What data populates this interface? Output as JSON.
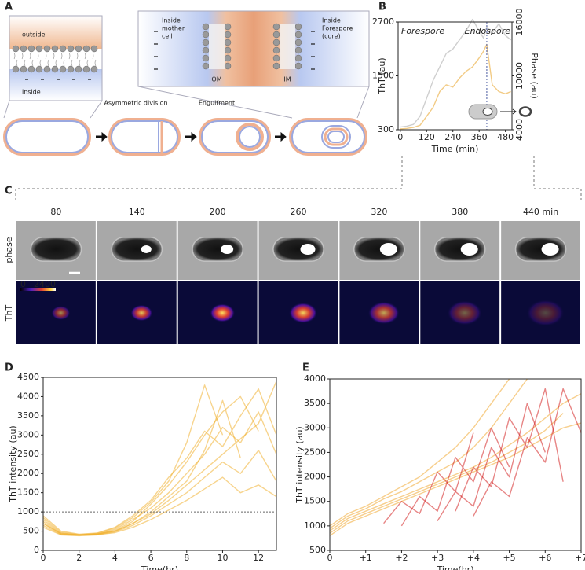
{
  "panel_labels": [
    "A",
    "B",
    "C",
    "D",
    "E"
  ],
  "diagram": {
    "outside": "outside",
    "inside": "inside",
    "mother_cell_label": [
      "Inside",
      "mother",
      "cell"
    ],
    "forespore_label": [
      "Inside",
      "Forespore",
      "(core)"
    ],
    "om": "OM",
    "im": "IM",
    "step_division": "Asymmetric division",
    "step_engulfment": "Engulfment"
  },
  "microscopy": {
    "times": [
      "80",
      "140",
      "200",
      "260",
      "320",
      "380",
      "440 min"
    ],
    "rows": [
      "phase",
      "ThT"
    ],
    "colorbar_labels": [
      "0",
      "2400"
    ]
  },
  "chart_data": [
    {
      "type": "line",
      "xlabel": "Time (min)",
      "ylabel": "ThT (au)",
      "y2label": "Phase (au)",
      "annotations": [
        "Forespore",
        "Endospore"
      ],
      "x": [
        0,
        30,
        60,
        90,
        120,
        150,
        180,
        210,
        240,
        270,
        300,
        330,
        360,
        380,
        395,
        420,
        450,
        480,
        505
      ],
      "xlim": [
        -10,
        510
      ],
      "xticks": [
        0,
        120,
        240,
        360,
        480
      ],
      "ylim": [
        300,
        2700
      ],
      "yticks": [
        300,
        1500,
        2700
      ],
      "y2lim": [
        4000,
        16000
      ],
      "y2ticks": [
        4000,
        10000,
        16000
      ],
      "vline": 395,
      "series": [
        {
          "name": "ThT",
          "color": "#e8a020",
          "axis": "y",
          "values": [
            320,
            330,
            350,
            400,
            600,
            800,
            1150,
            1300,
            1250,
            1450,
            1600,
            1700,
            1900,
            2050,
            2200,
            1300,
            1150,
            1100,
            1150
          ]
        },
        {
          "name": "Phase",
          "color": "#a8a8a8",
          "axis": "y2",
          "values": [
            4300,
            4400,
            4600,
            5500,
            7500,
            9500,
            11000,
            12500,
            13000,
            14000,
            15000,
            16300,
            15000,
            14200,
            15500,
            14800,
            15800,
            14500,
            14000
          ]
        }
      ]
    },
    {
      "type": "line",
      "xlabel": "Time(hr)",
      "ylabel": "ThT intensity (au)",
      "x": [
        0,
        1,
        2,
        3,
        4,
        5,
        6,
        7,
        8,
        9,
        10,
        11,
        12,
        13
      ],
      "xlim": [
        0,
        13
      ],
      "xticks": [
        0,
        2,
        4,
        6,
        8,
        10,
        12
      ],
      "ylim": [
        0,
        4500
      ],
      "yticks": [
        0,
        500,
        1000,
        1500,
        2000,
        2500,
        3000,
        3500,
        4000,
        4500
      ],
      "hline": 1000,
      "series": [
        {
          "color": "#f0b030",
          "values": [
            800,
            450,
            400,
            420,
            550,
            800,
            1100,
            1500,
            2000,
            2500,
            3200,
            2800,
            3600,
            2500
          ]
        },
        {
          "color": "#f0b030",
          "values": [
            700,
            420,
            400,
            430,
            500,
            700,
            1000,
            1400,
            1800,
            2600,
            3900,
            2400,
            null,
            null
          ]
        },
        {
          "color": "#f0b030",
          "values": [
            900,
            500,
            420,
            450,
            600,
            900,
            1300,
            1900,
            2400,
            3100,
            2700,
            3500,
            4200,
            3000
          ]
        },
        {
          "color": "#f0b030",
          "values": [
            600,
            400,
            380,
            400,
            480,
            650,
            900,
            1200,
            1500,
            1900,
            2300,
            2000,
            2600,
            1800
          ]
        },
        {
          "color": "#f0b030",
          "values": [
            750,
            430,
            400,
            420,
            520,
            750,
            1200,
            1700,
            2300,
            3000,
            3600,
            4000,
            3100,
            null
          ]
        },
        {
          "color": "#f0b030",
          "values": [
            650,
            410,
            390,
            410,
            460,
            600,
            800,
            1050,
            1300,
            1600,
            1900,
            1500,
            1700,
            1400
          ]
        },
        {
          "color": "#f0b030",
          "values": [
            850,
            470,
            410,
            440,
            580,
            850,
            1250,
            1800,
            2800,
            4300,
            3000,
            null,
            null,
            null
          ]
        },
        {
          "color": "#f0b030",
          "values": [
            700,
            440,
            400,
            420,
            500,
            700,
            950,
            1300,
            1700,
            2100,
            2500,
            2900,
            3300,
            4400
          ]
        }
      ]
    },
    {
      "type": "line",
      "xlabel": "Time(hr)",
      "ylabel": "ThT intensity (au)",
      "x": [
        0,
        0.5,
        1,
        1.5,
        2,
        2.5,
        3,
        3.5,
        4,
        4.5,
        5,
        5.5,
        6,
        6.5,
        7
      ],
      "xlim": [
        0,
        7
      ],
      "xticks": [
        0,
        {
          "value": 1,
          "label": "+1"
        },
        {
          "value": 2,
          "label": "+2"
        },
        {
          "value": 3,
          "label": "+3"
        },
        {
          "value": 4,
          "label": "+4"
        },
        {
          "value": 5,
          "label": "+5"
        },
        {
          "value": 6,
          "label": "+6"
        },
        {
          "value": 7,
          "label": "+7"
        }
      ],
      "ylim": [
        500,
        4000
      ],
      "yticks": [
        500,
        1000,
        1500,
        2000,
        2500,
        3000,
        3500,
        4000
      ],
      "series": [
        {
          "color": "#f0a830",
          "values": [
            900,
            1150,
            1300,
            1450,
            1600,
            1750,
            1900,
            2050,
            2200,
            2400,
            2650,
            2900,
            3200,
            3500,
            3700
          ]
        },
        {
          "color": "#f0a830",
          "values": [
            850,
            1100,
            1250,
            1400,
            1550,
            1700,
            1850,
            2000,
            2150,
            2300,
            2500,
            2700,
            2950,
            3300,
            null
          ]
        },
        {
          "color": "#f0a830",
          "values": [
            950,
            1200,
            1350,
            1550,
            1700,
            1900,
            2100,
            2300,
            2600,
            3000,
            3500,
            4000,
            null,
            null,
            null
          ]
        },
        {
          "color": "#f0a830",
          "values": [
            800,
            1050,
            1200,
            1350,
            1500,
            1650,
            1800,
            1950,
            2100,
            2250,
            2400,
            2600,
            2800,
            3000,
            3100
          ]
        },
        {
          "color": "#f0a830",
          "values": [
            1000,
            1250,
            1400,
            1600,
            1800,
            2000,
            2300,
            2600,
            3000,
            3500,
            4000,
            null,
            null,
            null,
            null
          ]
        },
        {
          "color": "#d42020",
          "values": [
            null,
            null,
            null,
            null,
            1000,
            1600,
            1300,
            2400,
            1900,
            3000,
            2200,
            null,
            null,
            null,
            null
          ]
        },
        {
          "color": "#d42020",
          "values": [
            null,
            null,
            null,
            null,
            null,
            null,
            1100,
            1700,
            1400,
            2600,
            2000,
            3500,
            2500,
            null,
            null
          ]
        },
        {
          "color": "#d42020",
          "values": [
            null,
            null,
            null,
            null,
            null,
            null,
            null,
            null,
            1200,
            1900,
            1600,
            2800,
            2300,
            3800,
            2900
          ]
        },
        {
          "color": "#d42020",
          "values": [
            null,
            null,
            null,
            1050,
            1500,
            1250,
            2100,
            1700,
            2900,
            null,
            null,
            null,
            null,
            null,
            null
          ]
        },
        {
          "color": "#d42020",
          "values": [
            null,
            null,
            null,
            null,
            null,
            null,
            null,
            1300,
            2200,
            1800,
            3200,
            2600,
            3800,
            1900,
            null
          ]
        }
      ]
    }
  ]
}
